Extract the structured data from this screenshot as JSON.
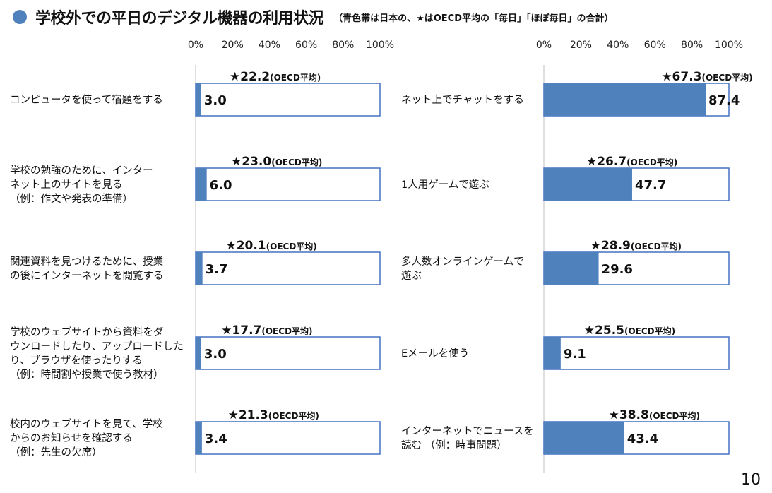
{
  "header": {
    "title": "学校外での平日のデジタル機器の利用状況",
    "subtitle": "（青色帯は日本の、★はOECD平均の「毎日」「ほぼ毎日」の合計）"
  },
  "page_number": "10",
  "colors": {
    "bar_fill": "#4f81bd",
    "bar_border": "#4472c4",
    "dot": "#4f81bd"
  },
  "chart_data": [
    {
      "type": "bar",
      "orientation": "horizontal",
      "xlim": [
        0,
        100
      ],
      "ticks": [
        "0%",
        "20%",
        "40%",
        "60%",
        "80%",
        "100%"
      ],
      "oecd_suffix": "(OECD平均)",
      "grid": false,
      "categories": [
        [
          "コンピュータを使って宿題をする"
        ],
        [
          "学校の勉強のために、インター",
          "ネット上のサイトを見る",
          "（例：作文や発表の準備）"
        ],
        [
          "関連資料を見つけるために、授業",
          "の後にインターネットを閲覧する"
        ],
        [
          "学校のウェブサイトから資料をダ",
          "ウンロードしたり、アップロードした",
          "り、ブラウザを使ったりする",
          "（例：時間割や授業で使う教材）"
        ],
        [
          "校内のウェブサイトを見て、学校",
          "からのお知らせを確認する",
          "（例：先生の欠席）"
        ]
      ],
      "values": [
        3.0,
        6.0,
        3.7,
        3.0,
        3.4
      ],
      "oecd": [
        22.2,
        23.0,
        20.1,
        17.7,
        21.3
      ]
    },
    {
      "type": "bar",
      "orientation": "horizontal",
      "xlim": [
        0,
        100
      ],
      "ticks": [
        "0%",
        "20%",
        "40%",
        "60%",
        "80%",
        "100%"
      ],
      "oecd_suffix": "(OECD平均)",
      "grid": false,
      "categories": [
        [
          "ネット上でチャットをする"
        ],
        [
          "1人用ゲームで遊ぶ"
        ],
        [
          "多人数オンラインゲームで",
          "遊ぶ"
        ],
        [
          "Eメールを使う"
        ],
        [
          "インターネットでニュースを",
          "読む （例：時事問題）"
        ]
      ],
      "values": [
        87.4,
        47.7,
        29.6,
        9.1,
        43.4
      ],
      "oecd": [
        67.3,
        26.7,
        28.9,
        25.5,
        38.8
      ]
    }
  ]
}
